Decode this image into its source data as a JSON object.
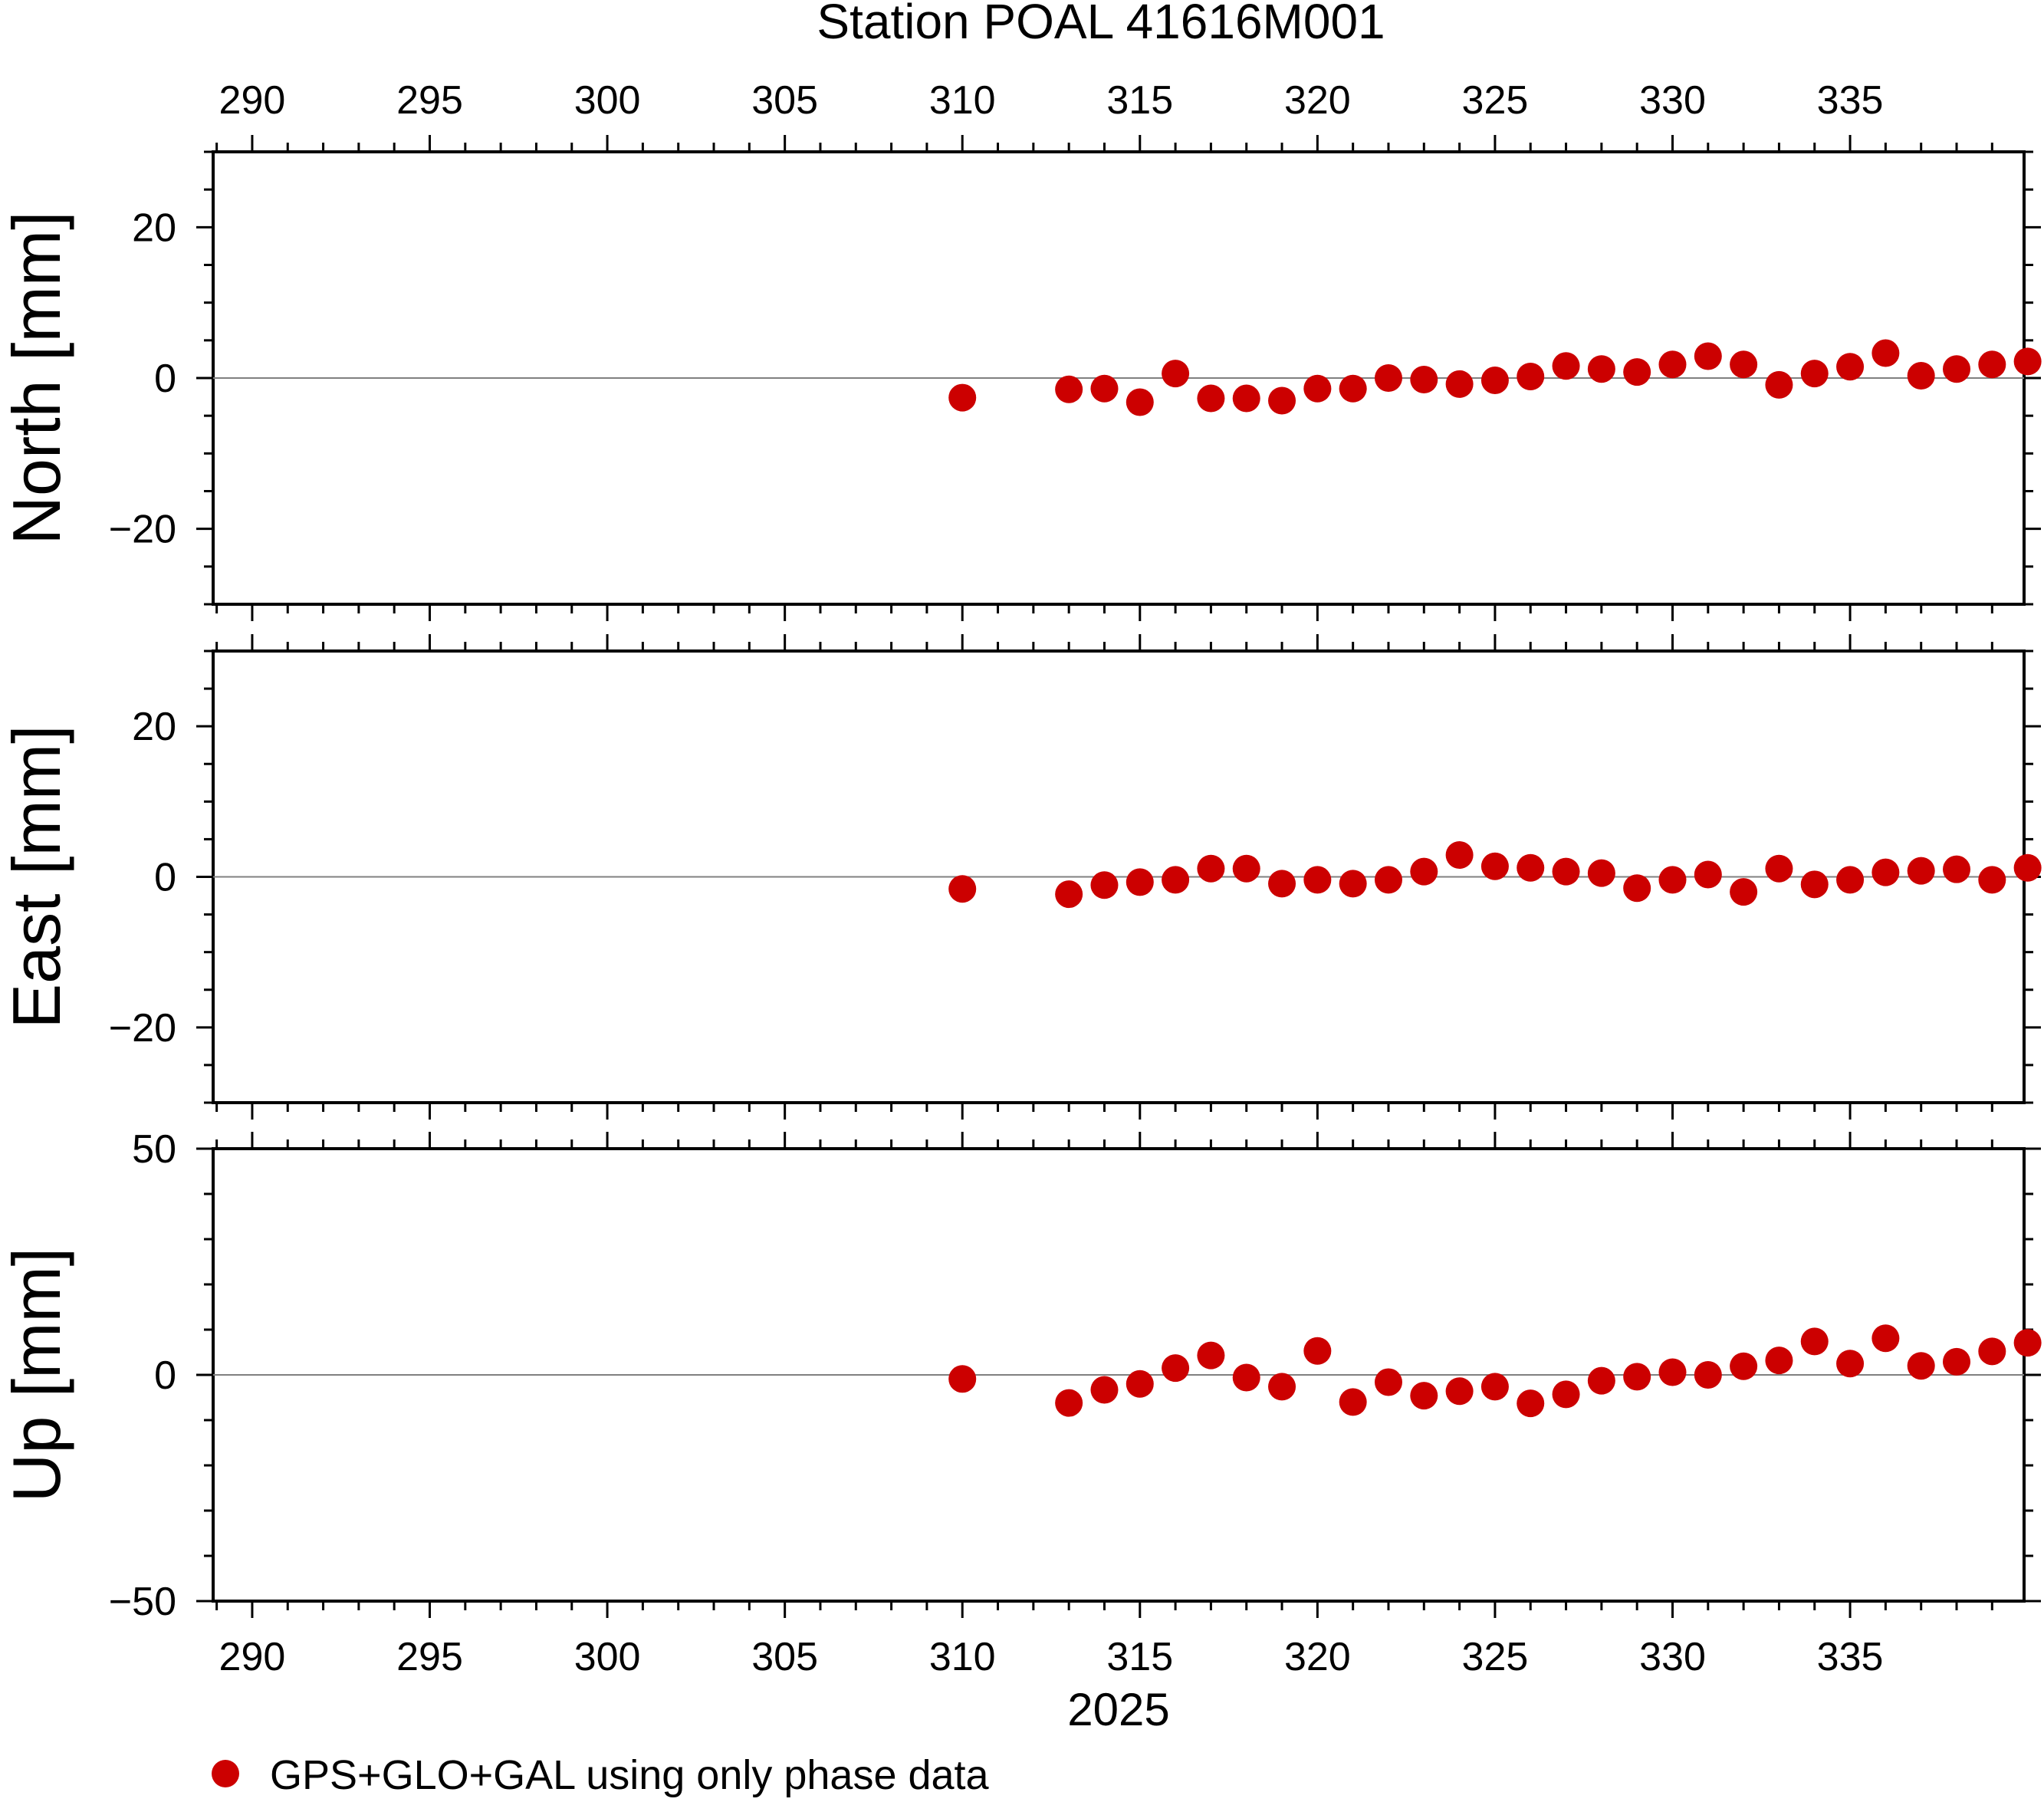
{
  "title": "Station POAL 41616M001",
  "colors": {
    "marker": "#cc0000",
    "axis": "#000000",
    "zero_line": "#808080",
    "background": "#ffffff"
  },
  "chart_data": {
    "type": "scatter",
    "title": "Station POAL 41616M001",
    "xlabel": "2025",
    "xlim": [
      288.9,
      339.9
    ],
    "x_ticks": [
      290,
      295,
      300,
      305,
      310,
      315,
      320,
      325,
      330,
      335
    ],
    "x_tick_labels": [
      "290",
      "295",
      "300",
      "305",
      "310",
      "315",
      "320",
      "325",
      "330",
      "335"
    ],
    "x_top_axis_labels": true,
    "grid": false,
    "legend": {
      "position": "bottom-left",
      "entries": [
        {
          "label": "GPS+GLO+GAL using only phase data",
          "marker": "filled-circle",
          "color": "#cc0000"
        }
      ]
    },
    "x": [
      310,
      313,
      314,
      315,
      316,
      317,
      318,
      319,
      320,
      321,
      322,
      323,
      324,
      325,
      326,
      327,
      328,
      329,
      330,
      331,
      332,
      333,
      334,
      335,
      336,
      337,
      338,
      339,
      340
    ],
    "panels": [
      {
        "name": "north",
        "ylabel": "North [mm]",
        "ylim": [
          -30,
          30
        ],
        "y_ticks": [
          -20,
          0,
          20
        ],
        "y_tick_labels": [
          "−20",
          "0",
          "20"
        ],
        "zero_line": true,
        "values": [
          -2.6,
          -1.5,
          -1.4,
          -3.2,
          0.6,
          -2.7,
          -2.7,
          -3.0,
          -1.4,
          -1.4,
          0.0,
          -0.2,
          -0.8,
          -0.3,
          0.2,
          1.6,
          1.2,
          0.8,
          1.8,
          2.9,
          1.8,
          -0.9,
          0.6,
          1.5,
          3.3,
          0.3,
          1.2,
          1.8,
          2.2
        ]
      },
      {
        "name": "east",
        "ylabel": "East [mm]",
        "ylim": [
          -30,
          30
        ],
        "y_ticks": [
          -20,
          0,
          20
        ],
        "y_tick_labels": [
          "−20",
          "0",
          "20"
        ],
        "zero_line": true,
        "values": [
          -1.6,
          -2.3,
          -1.1,
          -0.7,
          -0.4,
          1.1,
          1.1,
          -0.9,
          -0.4,
          -0.9,
          -0.4,
          0.7,
          2.9,
          1.4,
          1.2,
          0.7,
          0.5,
          -1.5,
          -0.4,
          0.3,
          -2.0,
          1.1,
          -1.0,
          -0.4,
          0.6,
          0.8,
          1.0,
          -0.4,
          1.2
        ]
      },
      {
        "name": "up",
        "ylabel": "Up [mm]",
        "ylim": [
          -50,
          50
        ],
        "y_ticks": [
          -50,
          0,
          50
        ],
        "y_tick_labels": [
          "−50",
          "0",
          "50"
        ],
        "zero_line": true,
        "values": [
          -0.9,
          -6.2,
          -3.3,
          -2.0,
          1.5,
          4.3,
          -0.6,
          -2.6,
          5.3,
          -6.0,
          -1.6,
          -4.6,
          -3.6,
          -2.6,
          -6.3,
          -4.3,
          -1.3,
          -0.4,
          0.6,
          0.0,
          1.9,
          3.2,
          7.4,
          2.5,
          8.1,
          2.0,
          2.9,
          5.2,
          7.1
        ]
      }
    ]
  }
}
